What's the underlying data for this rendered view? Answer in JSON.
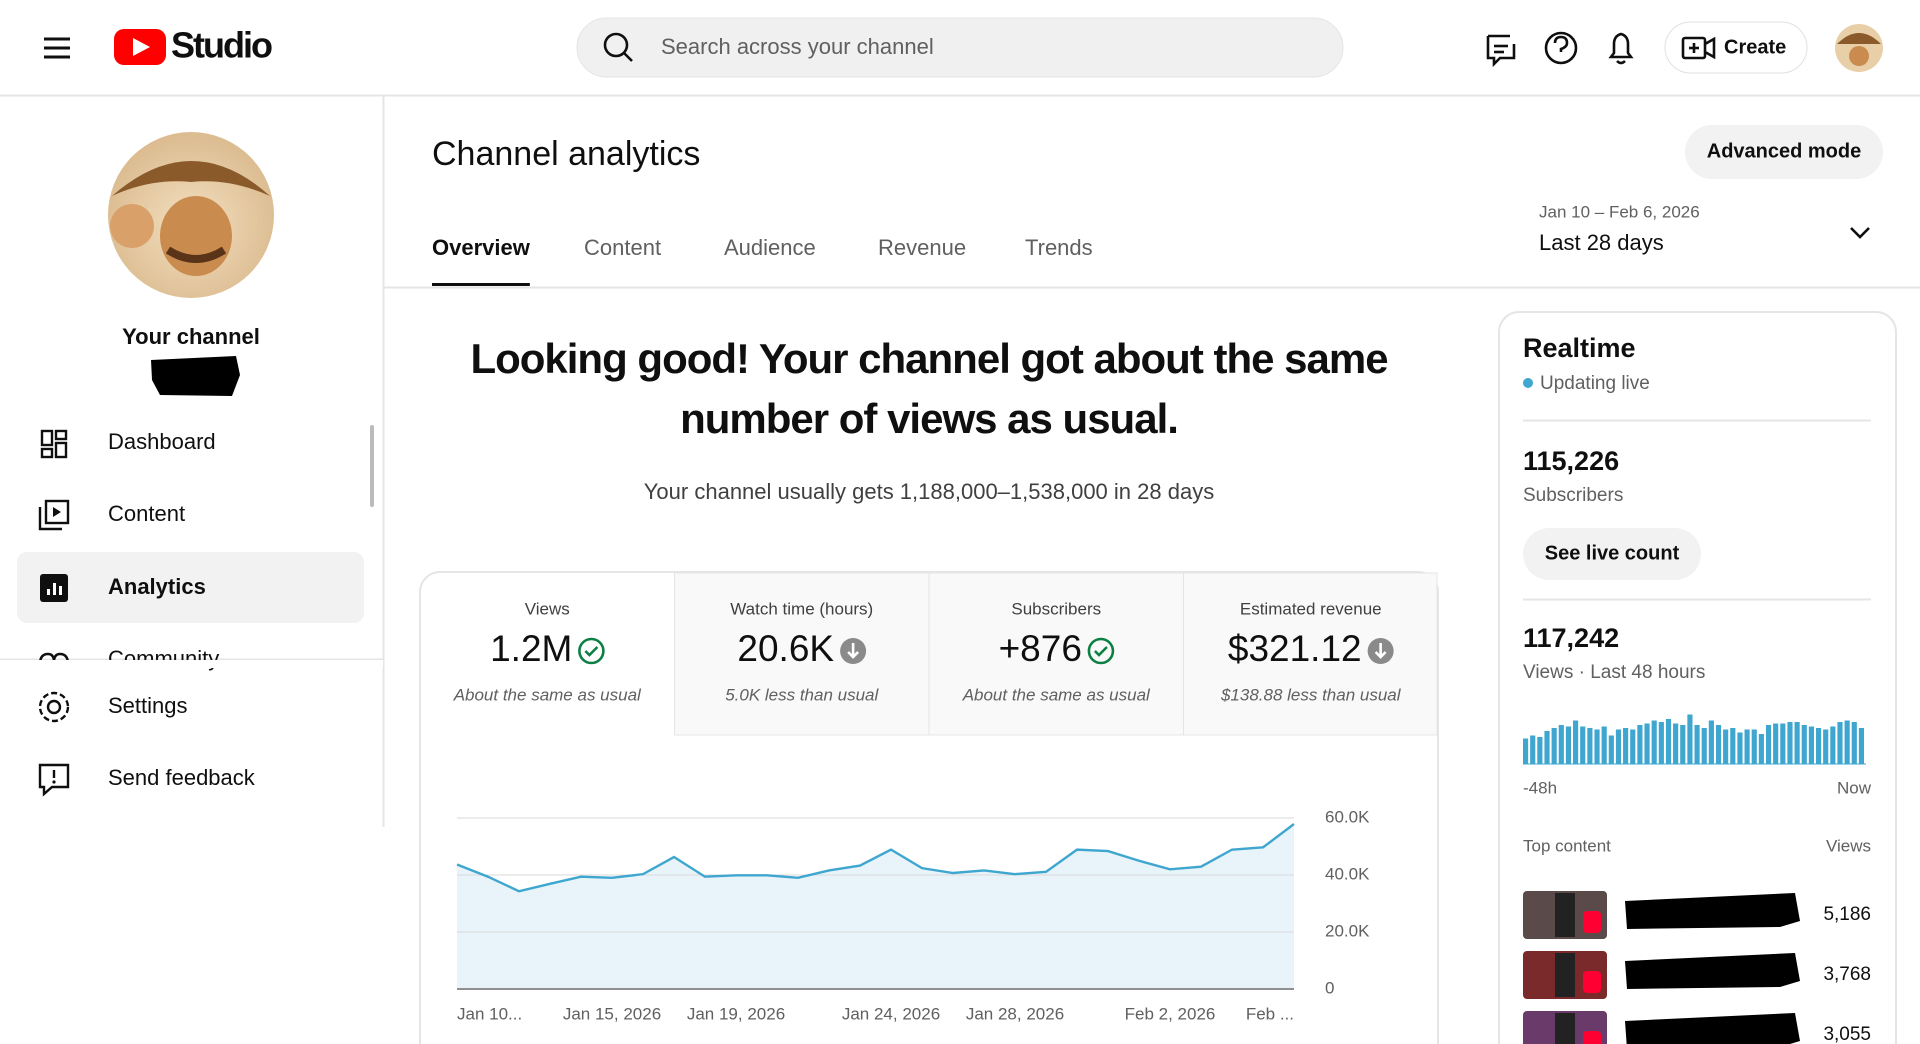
{
  "header": {
    "logo": "Studio",
    "search_placeholder": "Search across your channel",
    "create": "Create"
  },
  "sidebar": {
    "channel_label": "Your channel",
    "nav": [
      "Dashboard",
      "Content",
      "Analytics",
      "Community"
    ],
    "active": 2,
    "footer_nav": [
      "Settings",
      "Send feedback"
    ]
  },
  "page": {
    "title": "Channel analytics",
    "advanced_mode": "Advanced mode",
    "tabs": [
      "Overview",
      "Content",
      "Audience",
      "Revenue",
      "Trends"
    ],
    "active_tab": 0,
    "date_range": "Jan 10 – Feb 6, 2026",
    "period": "Last 28 days",
    "headline": [
      "Looking good! Your channel got about the same",
      "number of views as usual."
    ],
    "summary": "Your channel usually gets 1,188,000–1,538,000 in 28 days"
  },
  "metrics": [
    {
      "label": "Views",
      "value": "1.2M",
      "note": "About the same as usual",
      "status": "same"
    },
    {
      "label": "Watch time (hours)",
      "value": "20.6K",
      "note": "5.0K less than usual",
      "status": "less"
    },
    {
      "label": "Subscribers",
      "value": "+876",
      "note": "About the same as usual",
      "status": "same"
    },
    {
      "label": "Estimated revenue",
      "value": "$321.12",
      "note": "$138.88 less than usual",
      "status": "less"
    }
  ],
  "chart_data": {
    "type": "line",
    "color": "#3ea6cf",
    "grid": true,
    "categories": [
      "Jan 10...",
      null,
      null,
      null,
      null,
      "Jan 15, 2026",
      null,
      null,
      null,
      "Jan 19, 2026",
      null,
      null,
      null,
      null,
      "Jan 24, 2026",
      null,
      null,
      null,
      "Jan 28, 2026",
      null,
      null,
      null,
      null,
      "Feb 2, 2026",
      null,
      null,
      null,
      "Feb ..."
    ],
    "values": [
      43700,
      39400,
      34300,
      36900,
      39400,
      39000,
      40300,
      46300,
      39400,
      39900,
      39900,
      39000,
      41600,
      43300,
      48900,
      42400,
      40700,
      41600,
      40300,
      41100,
      48900,
      48400,
      45000,
      42000,
      42900,
      48900,
      49700,
      57900
    ],
    "ylim": [
      0,
      60000
    ],
    "yticks": [
      0,
      {
        "value": 20000,
        "label": "20.0K"
      },
      {
        "value": 40000,
        "label": "40.0K"
      },
      {
        "value": 60000,
        "label": "60.0K"
      }
    ]
  },
  "realtime": {
    "title": "Realtime",
    "status": "Updating live",
    "subscribers": {
      "value": "115,226",
      "label": "Subscribers"
    },
    "live_count_button": "See live count",
    "views": {
      "value": "117,242",
      "label": "Views · Last 48 hours"
    },
    "chart": {
      "type": "bar",
      "color": "#3ea6cf",
      "ylim": [
        0,
        4000
      ],
      "start_label": "-48h",
      "end_label": "Now",
      "values": [
        1700,
        1900,
        1800,
        2200,
        2400,
        2600,
        2500,
        2900,
        2500,
        2400,
        2300,
        2500,
        1900,
        2300,
        2400,
        2300,
        2600,
        2700,
        2900,
        2800,
        3000,
        2700,
        2600,
        3300,
        2600,
        2400,
        2900,
        2600,
        2300,
        2400,
        2100,
        2300,
        2300,
        2000,
        2600,
        2700,
        2700,
        2800,
        2800,
        2600,
        2500,
        2400,
        2300,
        2500,
        2800,
        2900,
        2800,
        2400
      ]
    },
    "top_content": {
      "title": "Top content",
      "views_label": "Views",
      "rows": [
        {
          "views": "5,186"
        },
        {
          "views": "3,768"
        },
        {
          "views": "3,055"
        }
      ]
    }
  }
}
